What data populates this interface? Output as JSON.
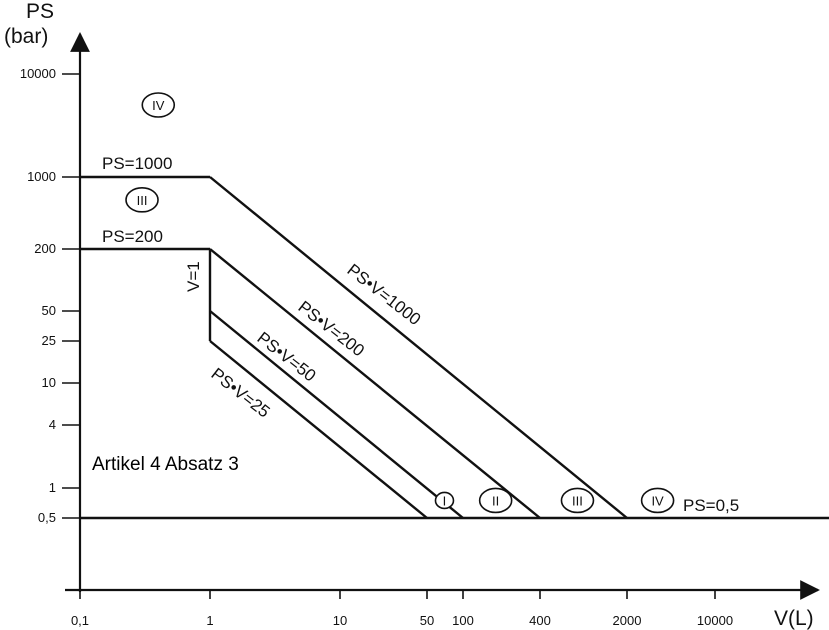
{
  "chart_data": {
    "type": "line",
    "x_scale": "log",
    "y_scale": "log",
    "xlabel": "V(L)",
    "ylabel_line1": "PS",
    "ylabel_line2": "(bar)",
    "xticks": [
      {
        "value": 0.1,
        "label": "0,1"
      },
      {
        "value": 1,
        "label": "1"
      },
      {
        "value": 10,
        "label": "10"
      },
      {
        "value": 50,
        "label": "50"
      },
      {
        "value": 100,
        "label": "100"
      },
      {
        "value": 400,
        "label": "400"
      },
      {
        "value": 2000,
        "label": "2000"
      },
      {
        "value": 10000,
        "label": "10000"
      }
    ],
    "yticks": [
      {
        "value": 0.5,
        "label": "0,5"
      },
      {
        "value": 1,
        "label": "1"
      },
      {
        "value": 4,
        "label": "4"
      },
      {
        "value": 10,
        "label": "10"
      },
      {
        "value": 25,
        "label": "25"
      },
      {
        "value": 50,
        "label": "50"
      },
      {
        "value": 200,
        "label": "200"
      },
      {
        "value": 1000,
        "label": "1000"
      },
      {
        "value": 10000,
        "label": "10000"
      }
    ],
    "series": [
      {
        "name": "PS=1000",
        "points": [
          [
            0.1,
            1000
          ],
          [
            1,
            1000
          ]
        ]
      },
      {
        "name": "PS•V=1000",
        "points": [
          [
            1,
            1000
          ],
          [
            2000,
            0.5
          ]
        ]
      },
      {
        "name": "PS=200",
        "points": [
          [
            0.1,
            200
          ],
          [
            1,
            200
          ]
        ]
      },
      {
        "name": "PS•V=200",
        "points": [
          [
            1,
            200
          ],
          [
            400,
            0.5
          ]
        ]
      },
      {
        "name": "V=1",
        "points": [
          [
            1,
            200
          ],
          [
            1,
            25
          ]
        ]
      },
      {
        "name": "PS•V=50",
        "points": [
          [
            1,
            50
          ],
          [
            100,
            0.5
          ]
        ]
      },
      {
        "name": "PS•V=25",
        "points": [
          [
            1,
            25
          ],
          [
            50,
            0.5
          ]
        ]
      },
      {
        "name": "PS=0,5",
        "points": [
          [
            0.1,
            0.5
          ],
          [
            100000,
            0.5
          ]
        ]
      }
    ],
    "category_markers": [
      {
        "label": "IV",
        "x": 0.4,
        "y": 5000
      },
      {
        "label": "III",
        "x": 0.3,
        "y": 600
      },
      {
        "label": "I",
        "x": 70,
        "y": 0.75
      },
      {
        "label": "II",
        "x": 180,
        "y": 0.75
      },
      {
        "label": "III",
        "x": 800,
        "y": 0.75
      },
      {
        "label": "IV",
        "x": 3500,
        "y": 0.75
      }
    ],
    "annotation": "Artikel 4 Absatz 3"
  }
}
